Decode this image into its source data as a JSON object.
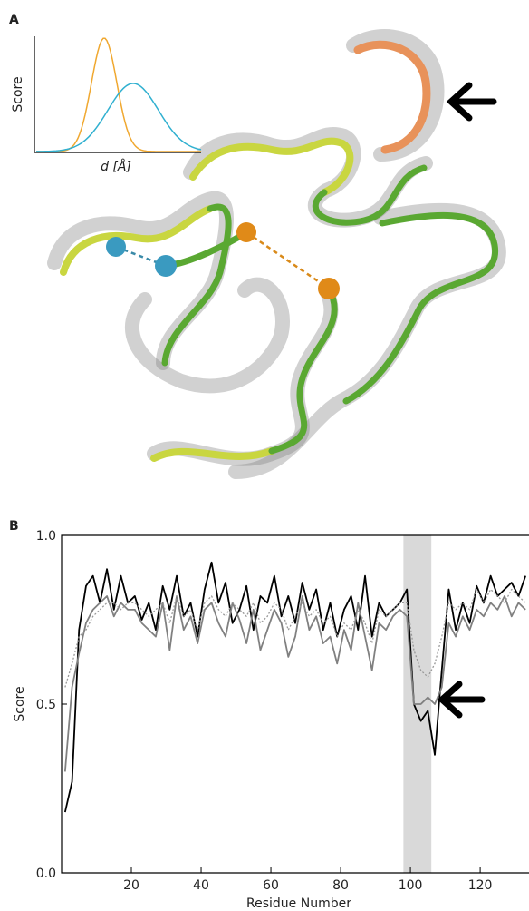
{
  "panel_a": {
    "label": "A",
    "inset": {
      "ylabel": "Score",
      "xlabel": "d [Å]"
    }
  },
  "chart_data": {
    "type": "line",
    "panel_label": "B",
    "xlabel": "Residue Number",
    "ylabel": "Score",
    "xlim": [
      0,
      134
    ],
    "ylim": [
      0,
      1
    ],
    "xticks": [
      20,
      40,
      60,
      80,
      100,
      120
    ],
    "yticks": [
      {
        "value": 0,
        "label": "0.0"
      },
      {
        "value": 0.5,
        "label": "0.5"
      },
      {
        "value": 1,
        "label": "1.0"
      }
    ],
    "highlight": [
      98,
      106
    ],
    "x": [
      1,
      3,
      5,
      7,
      9,
      11,
      13,
      15,
      17,
      19,
      21,
      23,
      25,
      27,
      29,
      31,
      33,
      35,
      37,
      39,
      41,
      43,
      45,
      47,
      49,
      51,
      53,
      55,
      57,
      59,
      61,
      63,
      65,
      67,
      69,
      71,
      73,
      75,
      77,
      79,
      81,
      83,
      85,
      87,
      89,
      91,
      93,
      95,
      97,
      99,
      101,
      103,
      105,
      107,
      109,
      111,
      113,
      115,
      117,
      119,
      121,
      123,
      125,
      127,
      129,
      131,
      133
    ],
    "series": [
      {
        "color": "#000000",
        "dash": false,
        "values": [
          0.18,
          0.27,
          0.72,
          0.85,
          0.88,
          0.8,
          0.9,
          0.78,
          0.88,
          0.8,
          0.82,
          0.75,
          0.8,
          0.72,
          0.85,
          0.78,
          0.88,
          0.76,
          0.8,
          0.7,
          0.84,
          0.92,
          0.8,
          0.86,
          0.74,
          0.78,
          0.85,
          0.72,
          0.82,
          0.8,
          0.88,
          0.76,
          0.82,
          0.74,
          0.86,
          0.78,
          0.84,
          0.72,
          0.8,
          0.7,
          0.78,
          0.82,
          0.72,
          0.88,
          0.7,
          0.8,
          0.76,
          0.78,
          0.8,
          0.84,
          0.5,
          0.45,
          0.48,
          0.35,
          0.6,
          0.84,
          0.72,
          0.8,
          0.74,
          0.85,
          0.8,
          0.88,
          0.82,
          0.84,
          0.86,
          0.82,
          0.88
        ]
      },
      {
        "color": "#808080",
        "dash": false,
        "values": [
          0.3,
          0.55,
          0.65,
          0.74,
          0.78,
          0.8,
          0.82,
          0.76,
          0.8,
          0.78,
          0.78,
          0.74,
          0.72,
          0.7,
          0.8,
          0.66,
          0.82,
          0.72,
          0.76,
          0.68,
          0.78,
          0.8,
          0.74,
          0.7,
          0.8,
          0.75,
          0.68,
          0.78,
          0.66,
          0.72,
          0.78,
          0.74,
          0.64,
          0.7,
          0.82,
          0.72,
          0.76,
          0.68,
          0.7,
          0.62,
          0.72,
          0.66,
          0.8,
          0.7,
          0.6,
          0.74,
          0.72,
          0.76,
          0.78,
          0.76,
          0.5,
          0.5,
          0.52,
          0.5,
          0.55,
          0.74,
          0.7,
          0.76,
          0.72,
          0.78,
          0.76,
          0.8,
          0.78,
          0.82,
          0.76,
          0.8,
          0.78
        ]
      },
      {
        "color": "#999999",
        "dash": true,
        "values": [
          0.55,
          0.62,
          0.7,
          0.72,
          0.76,
          0.78,
          0.8,
          0.8,
          0.78,
          0.8,
          0.8,
          0.78,
          0.76,
          0.78,
          0.8,
          0.74,
          0.82,
          0.76,
          0.78,
          0.72,
          0.8,
          0.82,
          0.78,
          0.76,
          0.8,
          0.78,
          0.76,
          0.8,
          0.74,
          0.76,
          0.8,
          0.78,
          0.72,
          0.76,
          0.8,
          0.76,
          0.78,
          0.74,
          0.76,
          0.7,
          0.74,
          0.72,
          0.78,
          0.74,
          0.68,
          0.78,
          0.76,
          0.78,
          0.8,
          0.8,
          0.66,
          0.6,
          0.58,
          0.62,
          0.7,
          0.8,
          0.78,
          0.8,
          0.78,
          0.84,
          0.8,
          0.84,
          0.82,
          0.8,
          0.84,
          0.82,
          0.8
        ]
      }
    ]
  }
}
